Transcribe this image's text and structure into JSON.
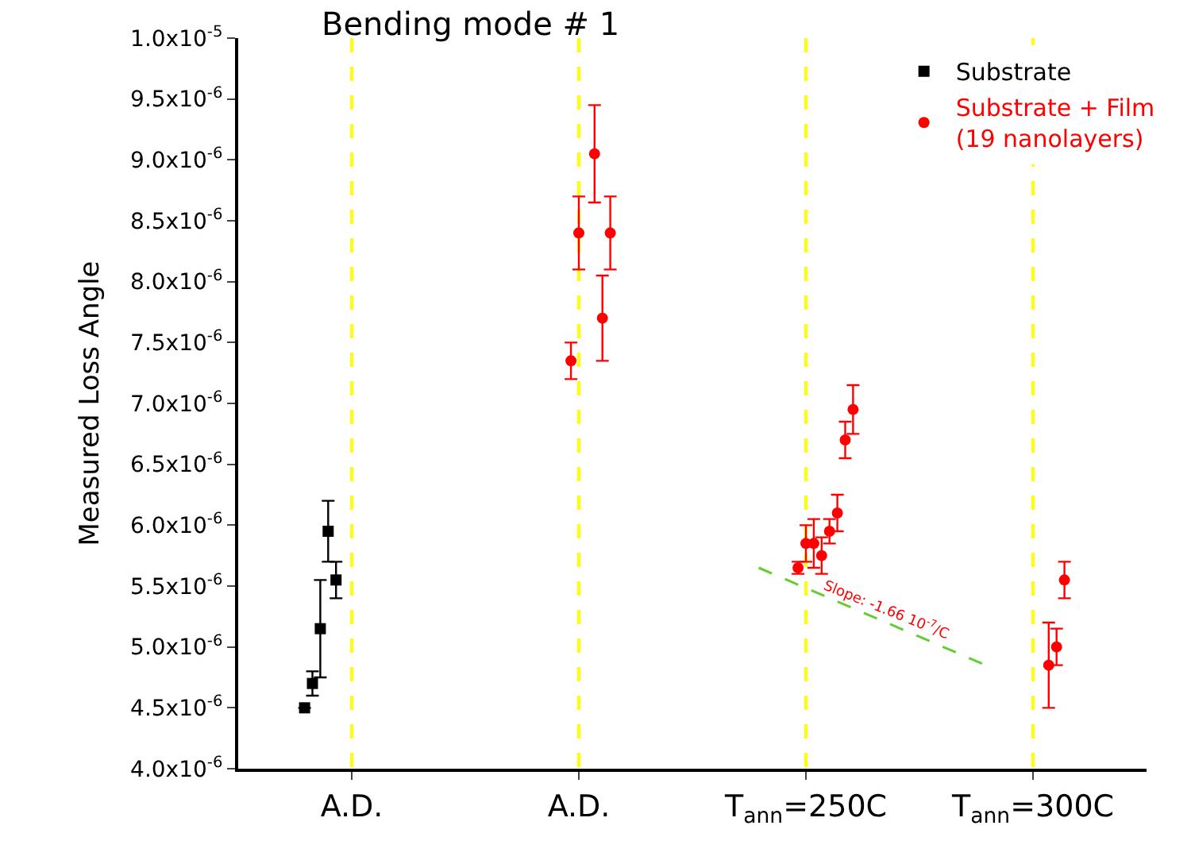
{
  "chart_data": {
    "type": "scatter",
    "title": "Bending mode # 1",
    "ylabel": "Measured Loss Angle",
    "categories": [
      "A.D.",
      "A.D.",
      "T$_{ann}$=250C",
      "T$_{ann}$=300C"
    ],
    "ylim": [
      4e-06,
      1e-05
    ],
    "yticks": [
      {
        "value": 4e-06,
        "label": "4.0x10$^{-6}$"
      },
      {
        "value": 4.5e-06,
        "label": "4.5x10$^{-6}$"
      },
      {
        "value": 5e-06,
        "label": "5.0x10$^{-6}$"
      },
      {
        "value": 5.5e-06,
        "label": "5.5x10$^{-6}$"
      },
      {
        "value": 6e-06,
        "label": "6.0x10$^{-6}$"
      },
      {
        "value": 6.5e-06,
        "label": "6.5x10$^{-6}$"
      },
      {
        "value": 7e-06,
        "label": "7.0x10$^{-6}$"
      },
      {
        "value": 7.5e-06,
        "label": "7.5x10$^{-6}$"
      },
      {
        "value": 8e-06,
        "label": "8.0x10$^{-6}$"
      },
      {
        "value": 8.5e-06,
        "label": "8.5x10$^{-6}$"
      },
      {
        "value": 9e-06,
        "label": "9.0x10$^{-6}$"
      },
      {
        "value": 9.5e-06,
        "label": "9.5x10$^{-6}$"
      },
      {
        "value": 1e-05,
        "label": "1.0x10$^{-5}$"
      }
    ],
    "grid": "x",
    "legend": "top right",
    "series": [
      {
        "name": "Substrate",
        "color": "#000000",
        "marker": "square",
        "values": [
          4.5e-06,
          null,
          null,
          null
        ],
        "errors": [
          null,
          null,
          null,
          null
        ]
      },
      {
        "color": "#000000",
        "marker": "square",
        "values": [
          4.7e-06,
          null,
          null,
          null
        ],
        "errors": [
          1e-07,
          null,
          null,
          null
        ]
      },
      {
        "color": "#000000",
        "marker": "square",
        "values": [
          5.15e-06,
          null,
          null,
          null
        ],
        "errors": [
          4e-07,
          null,
          null,
          null
        ]
      },
      {
        "color": "#000000",
        "marker": "square",
        "values": [
          5.95e-06,
          null,
          null,
          null
        ],
        "errors": [
          2.5e-07,
          null,
          null,
          null
        ]
      },
      {
        "color": "#000000",
        "marker": "square",
        "values": [
          5.55e-06,
          null,
          null,
          null
        ],
        "errors": [
          1.5e-07,
          null,
          null,
          null
        ]
      },
      {
        "name": "Substrate + Film\n(19 nanolayers)",
        "color": "#ff0000",
        "marker": "circle",
        "values": [
          null,
          7.35e-06,
          5.65e-06,
          null
        ],
        "errors": [
          null,
          1.5e-07,
          5e-08,
          null
        ]
      },
      {
        "color": "#ff0000",
        "marker": "circle",
        "values": [
          null,
          8.4e-06,
          5.85e-06,
          null
        ],
        "errors": [
          null,
          3e-07,
          1.5e-07,
          null
        ]
      },
      {
        "color": "#ff0000",
        "marker": "circle",
        "values": [
          null,
          null,
          5.85e-06,
          null
        ],
        "errors": [
          null,
          null,
          2e-07,
          null
        ]
      },
      {
        "color": "#ff0000",
        "marker": "circle",
        "values": [
          null,
          9.05e-06,
          5.75e-06,
          4.85e-06
        ],
        "errors": [
          null,
          4e-07,
          1.5e-07,
          3.5e-07
        ]
      },
      {
        "color": "#ff0000",
        "marker": "circle",
        "values": [
          null,
          7.7e-06,
          5.95e-06,
          5e-06
        ],
        "errors": [
          null,
          3.5e-07,
          1e-07,
          1.5e-07
        ]
      },
      {
        "color": "#ff0000",
        "marker": "circle",
        "values": [
          null,
          8.4e-06,
          6.1e-06,
          5.55e-06
        ],
        "errors": [
          null,
          3e-07,
          1.5e-07,
          1.5e-07
        ]
      },
      {
        "color": "#ff0000",
        "marker": "circle",
        "values": [
          null,
          null,
          6.7e-06,
          null
        ],
        "errors": [
          null,
          null,
          1.5e-07,
          null
        ]
      },
      {
        "color": "#ff0000",
        "marker": "circle",
        "values": [
          null,
          null,
          6.95e-06,
          null
        ],
        "errors": [
          null,
          null,
          2e-07,
          null
        ]
      },
      {
        "type": "line",
        "color": "#66cc33",
        "line_style": "dashed",
        "values": [
          null,
          null,
          5.65e-06,
          4.85e-06
        ]
      }
    ],
    "annotations": [
      "Slope: -1.66 10$^{-7}$/C"
    ]
  }
}
